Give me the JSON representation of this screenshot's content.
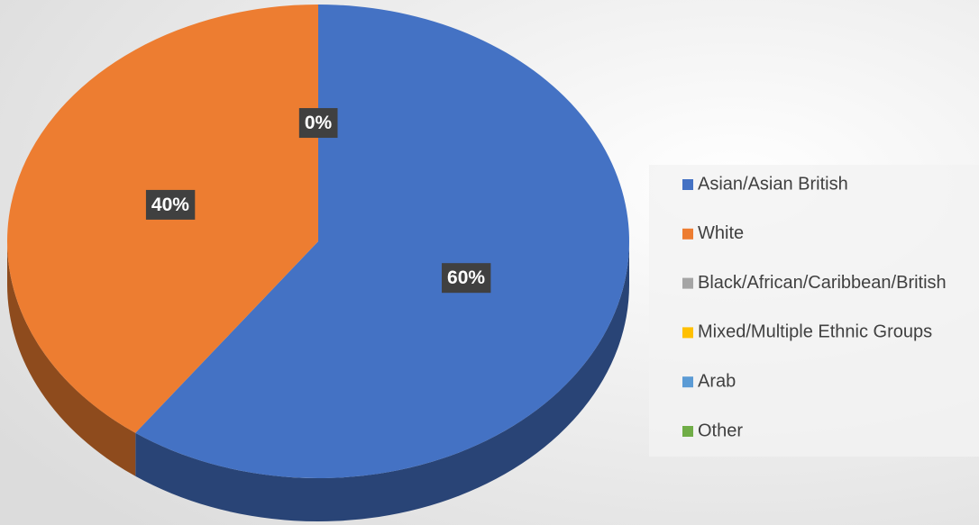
{
  "chart_data": {
    "type": "pie",
    "categories": [
      "Asian/Asian British",
      "White",
      "Black/African/Caribbean/British",
      "Mixed/Multiple Ethnic Groups",
      "Arab",
      "Other"
    ],
    "values": [
      60,
      40,
      0,
      0,
      0,
      0
    ],
    "value_labels": [
      "60%",
      "40%",
      "0%",
      null,
      null,
      null
    ],
    "colors": [
      "#4472c4",
      "#ed7d31",
      "#a5a5a5",
      "#ffc000",
      "#5b9bd5",
      "#70ad47"
    ],
    "legend": "right"
  }
}
